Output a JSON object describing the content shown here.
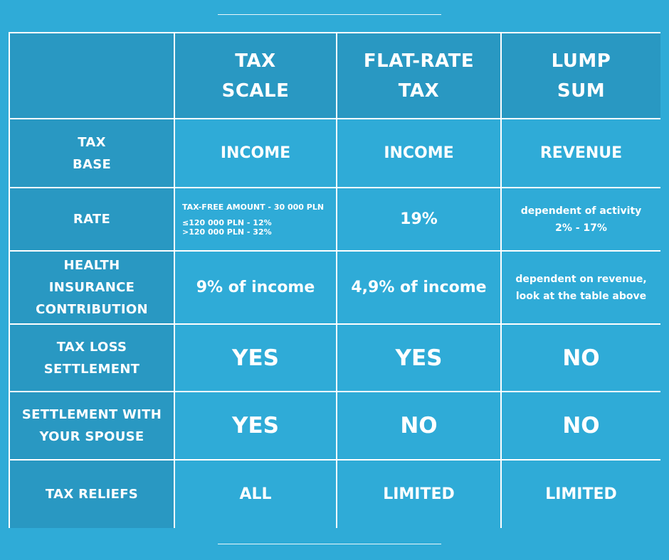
{
  "header_row": {
    "corner": "",
    "columns": [
      {
        "line1": "TAX",
        "line2": "SCALE"
      },
      {
        "line1": "FLAT-RATE",
        "line2": "TAX"
      },
      {
        "line1": "LUMP",
        "line2": "SUM"
      }
    ]
  },
  "rows": {
    "tax_base": {
      "label_line1": "TAX",
      "label_line2": "BASE",
      "tax_scale": "INCOME",
      "flat_rate": "INCOME",
      "lump_sum": "REVENUE"
    },
    "rate": {
      "label": "RATE",
      "tax_scale_tax_free": "TAX-FREE AMOUNT - 30 000 PLN",
      "tax_scale_bracket1": "≤120 000 PLN -   12%",
      "tax_scale_bracket2": ">120 000 PLN -   32%",
      "flat_rate": "19%",
      "lump_sum_line1": "dependent of activity",
      "lump_sum_line2": "2% - 17%"
    },
    "health": {
      "label_line1": "HEALTH",
      "label_line2": "INSURANCE",
      "label_line3": "CONTRIBUTION",
      "tax_scale": "9% of income",
      "flat_rate": "4,9% of income",
      "lump_sum_line1": "dependent on revenue,",
      "lump_sum_line2": "look at the table above"
    },
    "tax_loss": {
      "label_line1": "TAX LOSS",
      "label_line2": "SETTLEMENT",
      "tax_scale": "YES",
      "flat_rate": "YES",
      "lump_sum": "NO"
    },
    "spouse": {
      "label_line1": "SETTLEMENT WITH",
      "label_line2": "YOUR SPOUSE",
      "tax_scale": "YES",
      "flat_rate": "NO",
      "lump_sum": "NO"
    },
    "reliefs": {
      "label": "TAX RELIEFS",
      "tax_scale": "ALL",
      "flat_rate": "LIMITED",
      "lump_sum": "LIMITED"
    }
  },
  "colors": {
    "background": "#2fabd7",
    "header_cell": "#2998c2",
    "grid_line": "#ffffff",
    "text": "#ffffff"
  }
}
